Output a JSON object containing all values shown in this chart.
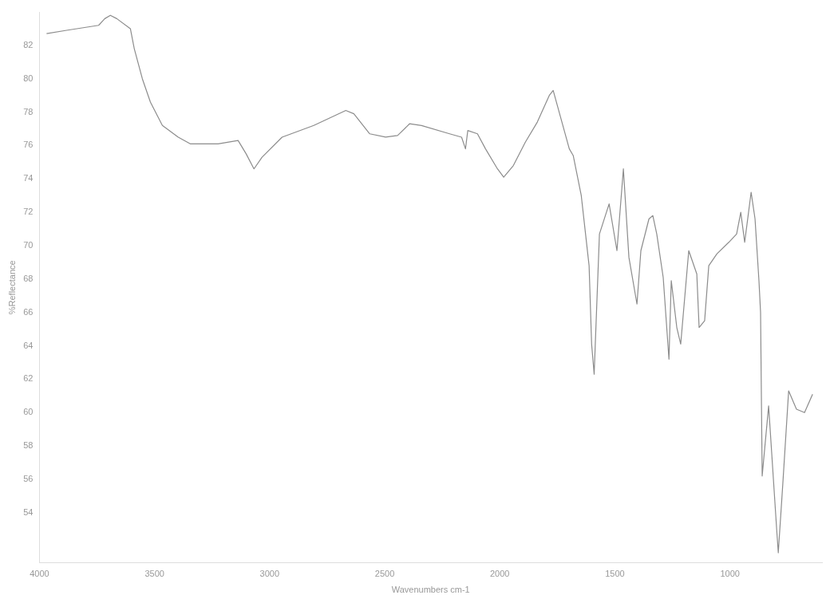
{
  "chart_data": {
    "type": "line",
    "xlabel": "Wavenumbers cm-1",
    "ylabel": "%Reflectance",
    "xlim": [
      4000,
      600
    ],
    "ylim": [
      51,
      84
    ],
    "xticks": [
      4000,
      3500,
      3000,
      2500,
      2000,
      1500,
      1000
    ],
    "yticks": [
      54,
      56,
      58,
      60,
      62,
      64,
      66,
      68,
      70,
      72,
      74,
      76,
      78,
      80,
      82
    ],
    "grid": false,
    "legend": false,
    "marker": "none",
    "line_style": "solid",
    "series": [
      {
        "color": "#8c8c8c",
        "x": [
          3969,
          3882,
          3743,
          3716,
          3692,
          3664,
          3605,
          3588,
          3553,
          3518,
          3466,
          3397,
          3345,
          3224,
          3137,
          3102,
          3068,
          3033,
          2946,
          2808,
          2669,
          2634,
          2565,
          2496,
          2444,
          2392,
          2340,
          2218,
          2166,
          2149,
          2139,
          2097,
          2062,
          2010,
          1983,
          1941,
          1889,
          1837,
          1785,
          1768,
          1698,
          1681,
          1646,
          1612,
          1601,
          1590,
          1567,
          1525,
          1491,
          1463,
          1439,
          1404,
          1387,
          1352,
          1335,
          1318,
          1290,
          1265,
          1255,
          1231,
          1214,
          1179,
          1144,
          1134,
          1110,
          1092,
          1057,
          1005,
          971,
          953,
          936,
          908,
          891,
          874,
          867,
          860,
          832,
          797,
          790,
          770,
          745,
          711,
          676,
          641
        ],
        "values": [
          82.7,
          82.9,
          83.2,
          83.6,
          83.8,
          83.6,
          83.0,
          81.8,
          80.0,
          78.6,
          77.2,
          76.5,
          76.1,
          76.1,
          76.3,
          75.5,
          74.6,
          75.3,
          76.5,
          77.2,
          78.1,
          77.9,
          76.7,
          76.5,
          76.6,
          77.3,
          77.2,
          76.7,
          76.5,
          75.8,
          76.9,
          76.7,
          75.8,
          74.6,
          74.1,
          74.8,
          76.2,
          77.4,
          79.0,
          79.3,
          75.8,
          75.4,
          73.0,
          68.8,
          64.1,
          62.3,
          70.7,
          72.5,
          69.7,
          74.6,
          69.3,
          66.5,
          69.7,
          71.6,
          71.8,
          70.7,
          68.1,
          63.2,
          67.9,
          65.1,
          64.1,
          69.7,
          68.3,
          65.1,
          65.5,
          68.8,
          69.5,
          70.2,
          70.7,
          72.0,
          70.2,
          73.2,
          71.6,
          67.9,
          66.0,
          56.2,
          60.4,
          53.0,
          51.6,
          55.8,
          61.3,
          60.2,
          60.0,
          61.1
        ]
      }
    ]
  }
}
